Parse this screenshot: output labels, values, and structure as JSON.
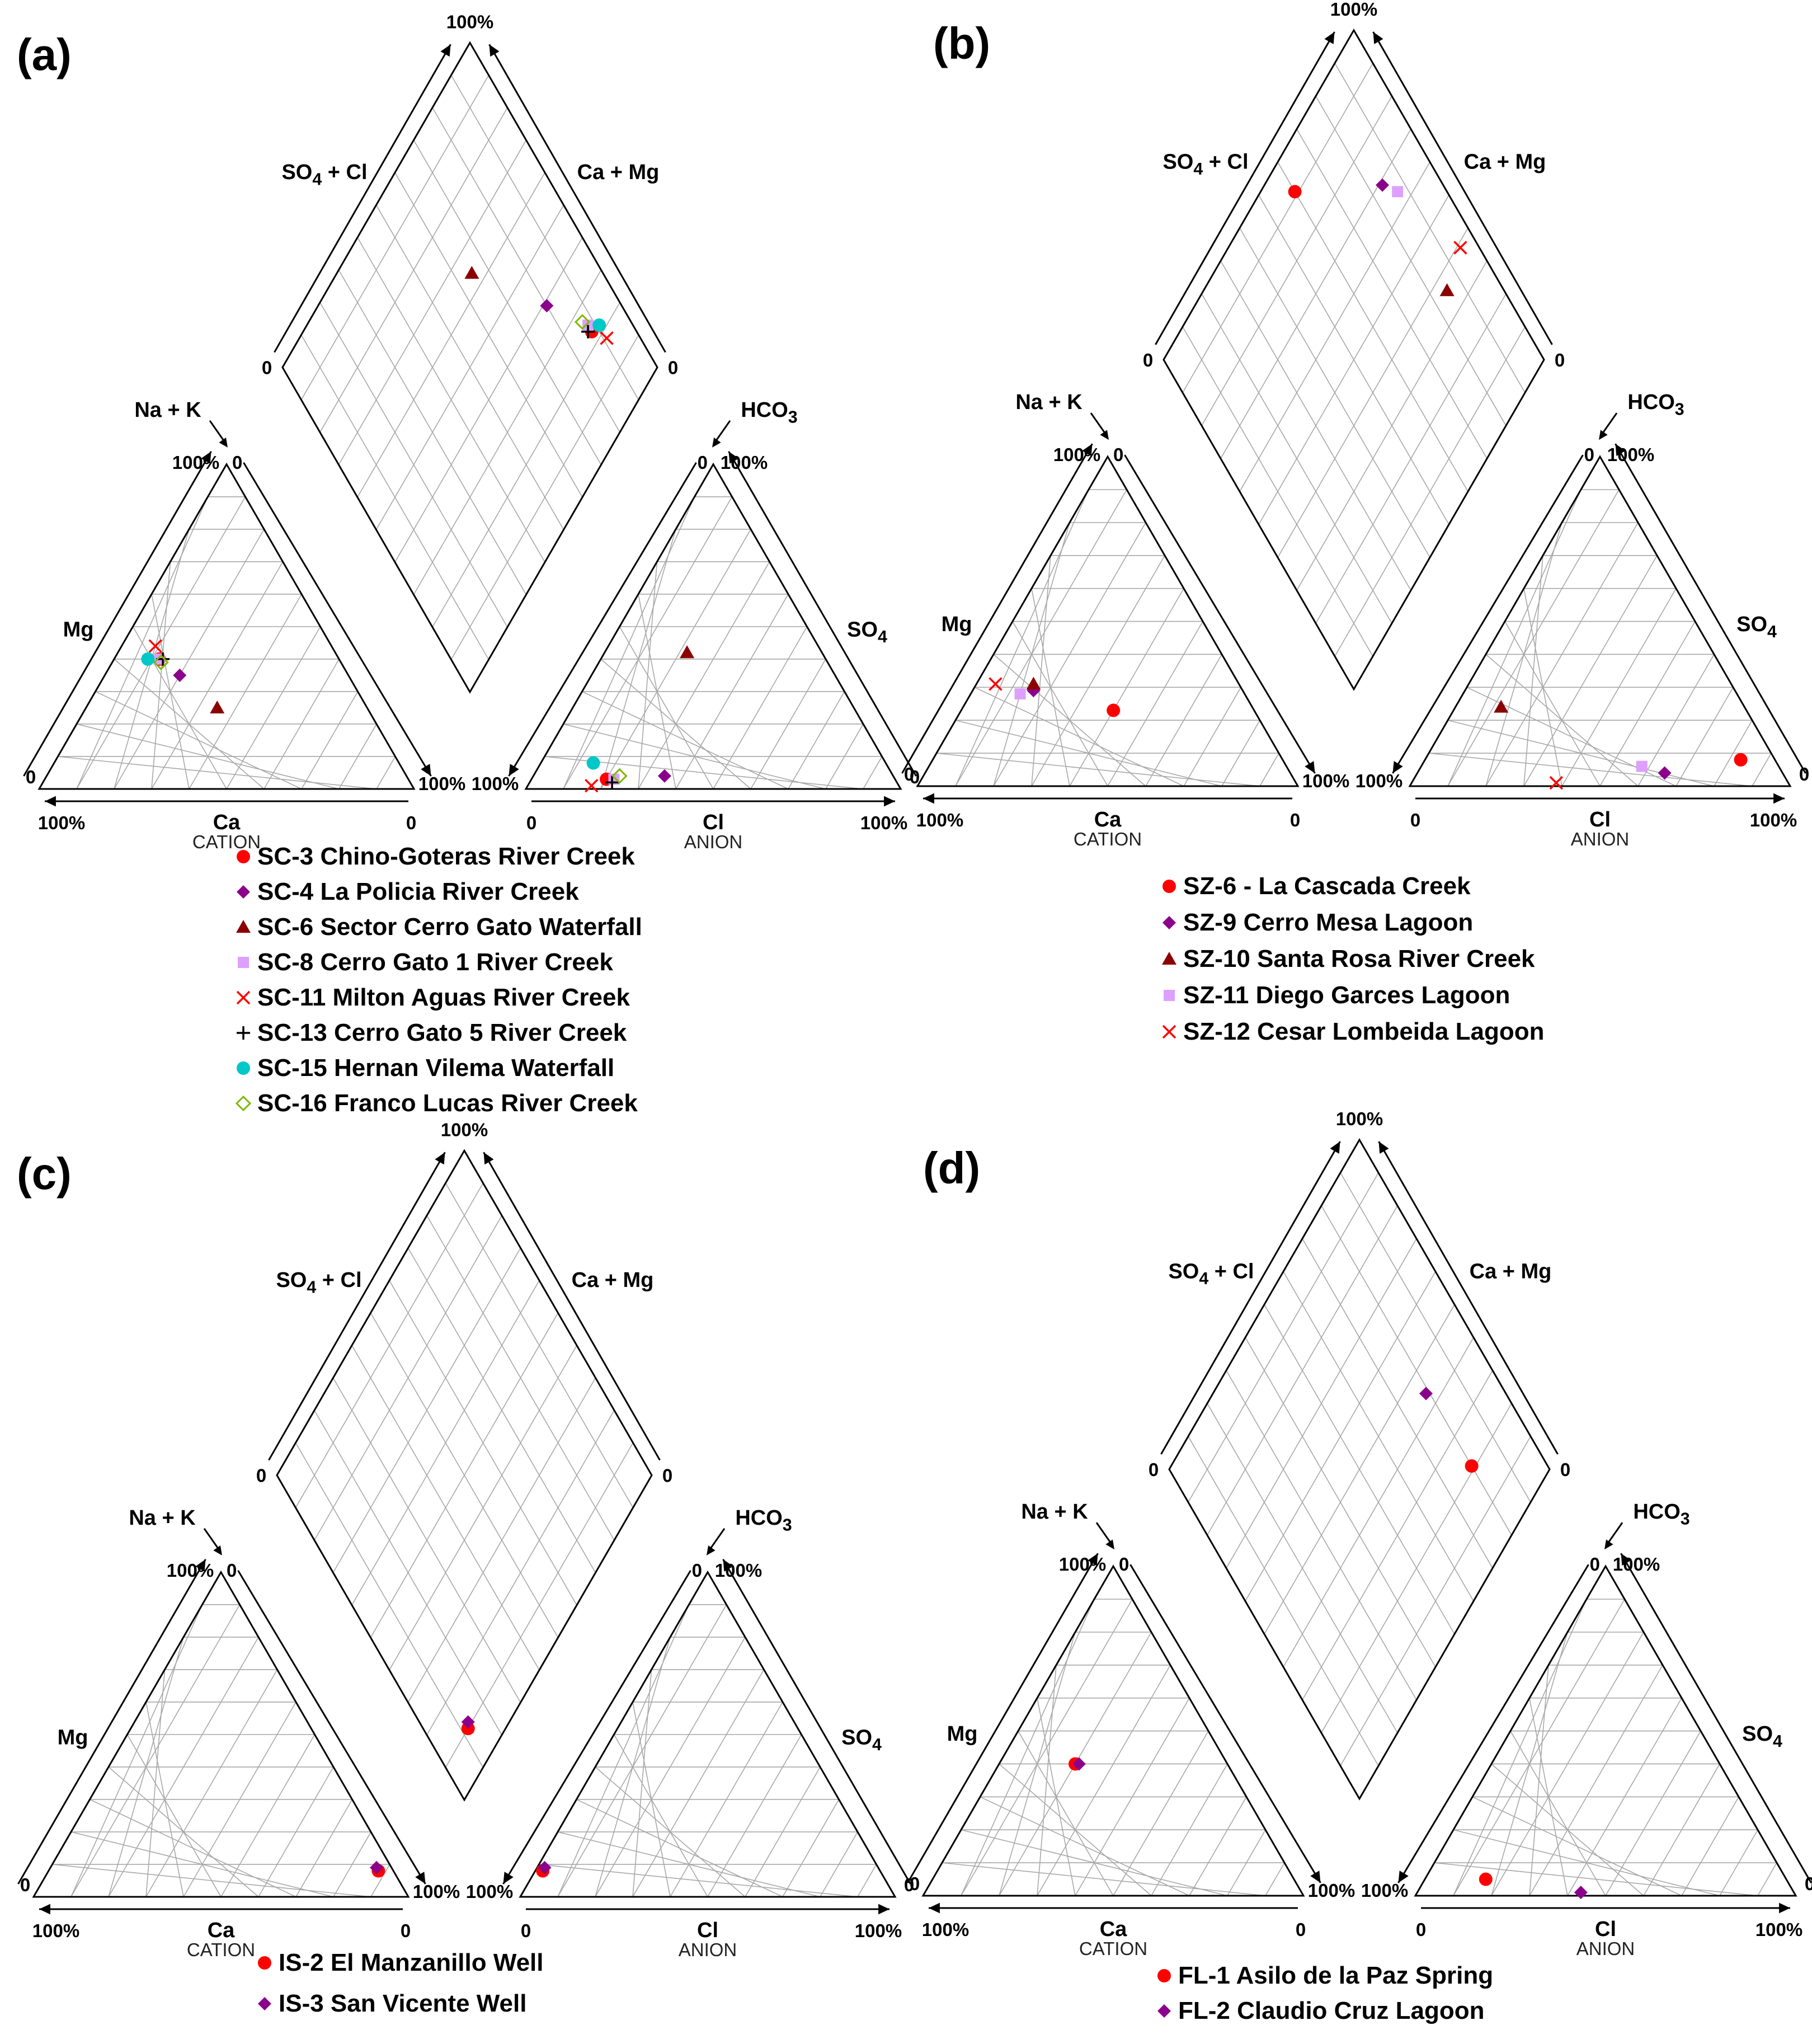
{
  "figure": "Piper diagrams of water samples",
  "chart_data": [
    {
      "panel": "(a)",
      "type": "scatter",
      "subtype": "piper",
      "labels": {
        "cation_axis": "CATION",
        "anion_axis": "ANION",
        "ca": "Ca",
        "mg": "Mg",
        "nak": "Na + K",
        "cl": "Cl",
        "so4": "SO",
        "so4_sub": "4",
        "hco3": "HCO",
        "hco3_sub": "3",
        "diamond_left": "SO",
        "diamond_left_sub": "4",
        "diamond_left_rest": " + Cl",
        "diamond_right": "Ca + Mg",
        "t100": "100%",
        "t0": "0"
      },
      "series": [
        {
          "name": "SC-3 Chino-Goteras River Creek",
          "marker": "circle",
          "color": "#ff0000",
          "cation": {
            "ca": 48,
            "mg": 40
          },
          "anion": {
            "cl": 20,
            "so4": 3
          }
        },
        {
          "name": "SC-4 La Policia River Creek",
          "marker": "diamond",
          "color": "#8b008b",
          "cation": {
            "ca": 45,
            "mg": 35
          },
          "anion": {
            "cl": 35,
            "so4": 4
          }
        },
        {
          "name": "SC-6 Sector Cerro Gato Waterfall",
          "marker": "triangle",
          "color": "#8b0000",
          "cation": {
            "ca": 40,
            "mg": 25
          },
          "anion": {
            "cl": 22,
            "so4": 42
          }
        },
        {
          "name": "SC-8 Cerro Gato 1 River Creek",
          "marker": "square",
          "color": "#dda0ff",
          "cation": {
            "ca": 48,
            "mg": 40
          },
          "anion": {
            "cl": 22,
            "so4": 3
          }
        },
        {
          "name": "SC-11 Milton Aguas River Creek",
          "marker": "x",
          "color": "#ff0000",
          "cation": {
            "ca": 47,
            "mg": 44
          },
          "anion": {
            "cl": 17,
            "so4": 1
          }
        },
        {
          "name": "SC-13 Cerro Gato 5 River Creek",
          "marker": "plus",
          "color": "#000000",
          "cation": {
            "ca": 47,
            "mg": 40
          },
          "anion": {
            "cl": 22,
            "so4": 2
          }
        },
        {
          "name": "SC-15 Hernan Vilema Waterfall",
          "marker": "circle",
          "color": "#00c8c8",
          "cation": {
            "ca": 51,
            "mg": 40
          },
          "anion": {
            "cl": 14,
            "so4": 8
          }
        },
        {
          "name": "SC-16 Franco Lucas River Creek",
          "marker": "diamond-open",
          "color": "#7fb800",
          "cation": {
            "ca": 48,
            "mg": 39
          },
          "anion": {
            "cl": 23,
            "so4": 4
          }
        }
      ]
    },
    {
      "panel": "(b)",
      "type": "scatter",
      "subtype": "piper",
      "labels": {
        "cation_axis": "CATION",
        "anion_axis": "ANION",
        "ca": "Ca",
        "mg": "Mg",
        "nak": "Na + K",
        "cl": "Cl",
        "so4": "SO",
        "so4_sub": "4",
        "hco3": "HCO",
        "hco3_sub": "3",
        "diamond_left": "SO",
        "diamond_left_sub": "4",
        "diamond_left_rest": " + Cl",
        "diamond_right": "Ca + Mg",
        "t100": "100%",
        "t0": "0"
      },
      "series": [
        {
          "name": "SZ-6 - La Cascada Creek",
          "marker": "circle",
          "color": "#ff0000",
          "cation": {
            "ca": 37,
            "mg": 23
          },
          "anion": {
            "cl": 83,
            "so4": 8
          }
        },
        {
          "name": "SZ-9 Cerro Mesa Lagoon",
          "marker": "diamond",
          "color": "#8b008b",
          "cation": {
            "ca": 55,
            "mg": 29
          },
          "anion": {
            "cl": 65,
            "so4": 4
          }
        },
        {
          "name": "SZ-10 Santa Rosa River Creek",
          "marker": "triangle",
          "color": "#8b0000",
          "cation": {
            "ca": 54,
            "mg": 31
          },
          "anion": {
            "cl": 12,
            "so4": 24
          }
        },
        {
          "name": "SZ-11 Diego Garces Lagoon",
          "marker": "square",
          "color": "#dda0ff",
          "cation": {
            "ca": 59,
            "mg": 28
          },
          "anion": {
            "cl": 58,
            "so4": 6
          }
        },
        {
          "name": "SZ-12 Cesar Lombeida Lagoon",
          "marker": "x",
          "color": "#ff0000",
          "cation": {
            "ca": 64,
            "mg": 31
          },
          "anion": {
            "cl": 38,
            "so4": 1
          }
        }
      ]
    },
    {
      "panel": "(c)",
      "type": "scatter",
      "subtype": "piper",
      "labels": {
        "cation_axis": "CATION",
        "anion_axis": "ANION",
        "ca": "Ca",
        "mg": "Mg",
        "nak": "Na + K",
        "cl": "Cl",
        "so4": "SO",
        "so4_sub": "4",
        "hco3": "HCO",
        "hco3_sub": "3",
        "diamond_left": "SO",
        "diamond_left_sub": "4",
        "diamond_left_rest": " + Cl",
        "diamond_right": "Ca + Mg",
        "t100": "100%",
        "t0": "0"
      },
      "series": [
        {
          "name": "IS-2 El Manzanillo Well",
          "marker": "circle",
          "color": "#ff0000",
          "cation": {
            "ca": 4,
            "mg": 8
          },
          "anion": {
            "cl": 2,
            "so4": 8
          }
        },
        {
          "name": "IS-3 San Vicente Well",
          "marker": "diamond",
          "color": "#8b008b",
          "cation": {
            "ca": 4,
            "mg": 9
          },
          "anion": {
            "cl": 2,
            "so4": 9
          }
        }
      ]
    },
    {
      "panel": "(d)",
      "type": "scatter",
      "subtype": "piper",
      "labels": {
        "cation_axis": "CATION",
        "anion_axis": "ANION",
        "ca": "Ca",
        "mg": "Mg",
        "nak": "Na + K",
        "cl": "Cl",
        "so4": "SO",
        "so4_sub": "4",
        "hco3": "HCO",
        "hco3_sub": "3",
        "diamond_left": "SO",
        "diamond_left_sub": "4",
        "diamond_left_rest": " + Cl",
        "diamond_right": "Ca + Mg",
        "t100": "100%",
        "t0": "0"
      },
      "series": [
        {
          "name": "FL-1 Asilo de la Paz Spring",
          "marker": "circle",
          "color": "#ff0000",
          "cation": {
            "ca": 40,
            "mg": 40
          },
          "anion": {
            "cl": 16,
            "so4": 5
          }
        },
        {
          "name": "FL-2 Claudio Cruz Lagoon",
          "marker": "diamond",
          "color": "#8b008b",
          "cation": {
            "ca": 39,
            "mg": 40
          },
          "anion": {
            "cl": 43,
            "so4": 1
          }
        }
      ]
    }
  ]
}
